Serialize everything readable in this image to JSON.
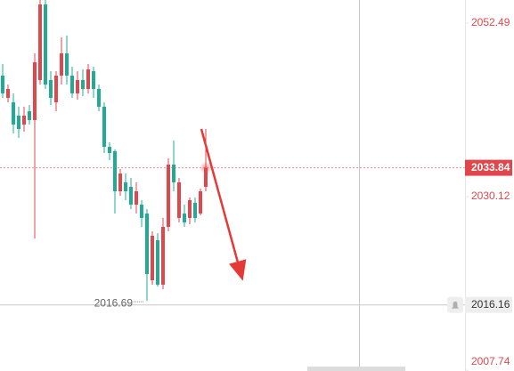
{
  "chart_data": {
    "type": "candlestick",
    "up_color": "#e0474c",
    "down_color": "#22ab94",
    "ylim": [
      2007.64,
      2055.47
    ],
    "yticks": [
      2052.49,
      2030.12,
      2007.74
    ],
    "last_price": 2033.84,
    "crosshair_price": 2016.16,
    "low_annotation": 2016.69,
    "ohlc": [
      [
        2045.72,
        2047.21,
        2042.85,
        2043.43
      ],
      [
        2042.85,
        2044.57,
        2042.28,
        2044.0
      ],
      [
        2042.28,
        2043.43,
        2038.26,
        2039.41
      ],
      [
        2040.56,
        2041.71,
        2037.69,
        2038.84
      ],
      [
        2039.41,
        2041.71,
        2038.49,
        2040.56
      ],
      [
        2041.13,
        2041.94,
        2039.41,
        2039.99
      ],
      [
        2039.99,
        2048.59,
        2024.73,
        2047.44
      ],
      [
        2045.15,
        2055.47,
        2044.57,
        2054.9
      ],
      [
        2054.9,
        2055.47,
        2044.0,
        2044.57
      ],
      [
        2045.15,
        2046.29,
        2041.94,
        2042.85
      ],
      [
        2042.28,
        2046.29,
        2041.13,
        2045.72
      ],
      [
        2045.72,
        2050.65,
        2044.57,
        2048.59
      ],
      [
        2048.59,
        2050.88,
        2044.57,
        2045.72
      ],
      [
        2045.72,
        2046.87,
        2042.85,
        2043.43
      ],
      [
        2043.43,
        2046.29,
        2042.62,
        2045.15
      ],
      [
        2045.15,
        2046.52,
        2043.08,
        2044.0
      ],
      [
        2044.0,
        2047.21,
        2043.43,
        2046.52
      ],
      [
        2046.29,
        2046.87,
        2042.85,
        2044.0
      ],
      [
        2044.0,
        2044.57,
        2041.13,
        2041.71
      ],
      [
        2041.71,
        2042.28,
        2035.74,
        2036.54
      ],
      [
        2036.54,
        2037.12,
        2034.82,
        2035.74
      ],
      [
        2035.97,
        2036.2,
        2027.94,
        2030.81
      ],
      [
        2030.81,
        2033.68,
        2030.24,
        2033.1
      ],
      [
        2031.96,
        2033.1,
        2029.66,
        2030.81
      ],
      [
        2031.38,
        2032.53,
        2028.52,
        2029.09
      ],
      [
        2029.09,
        2031.96,
        2027.94,
        2030.81
      ],
      [
        2029.09,
        2029.66,
        2026.22,
        2027.37
      ],
      [
        2027.94,
        2028.52,
        2016.69,
        2020.14
      ],
      [
        2019.34,
        2025.65,
        2018.77,
        2025.07
      ],
      [
        2024.5,
        2025.42,
        2018.54,
        2018.77
      ],
      [
        2018.77,
        2027.37,
        2018.19,
        2026.22
      ],
      [
        2026.22,
        2035.05,
        2025.65,
        2034.25
      ],
      [
        2034.25,
        2037.35,
        2030.81,
        2031.96
      ],
      [
        2027.37,
        2032.53,
        2026.79,
        2031.96
      ],
      [
        2027.94,
        2029.09,
        2026.22,
        2026.79
      ],
      [
        2027.37,
        2030.01,
        2026.57,
        2029.66
      ],
      [
        2029.32,
        2030.01,
        2026.79,
        2027.37
      ],
      [
        2027.94,
        2031.15,
        2027.71,
        2030.81
      ],
      [
        2031.38,
        2038.84,
        2030.81,
        2033.84
      ]
    ]
  }
}
